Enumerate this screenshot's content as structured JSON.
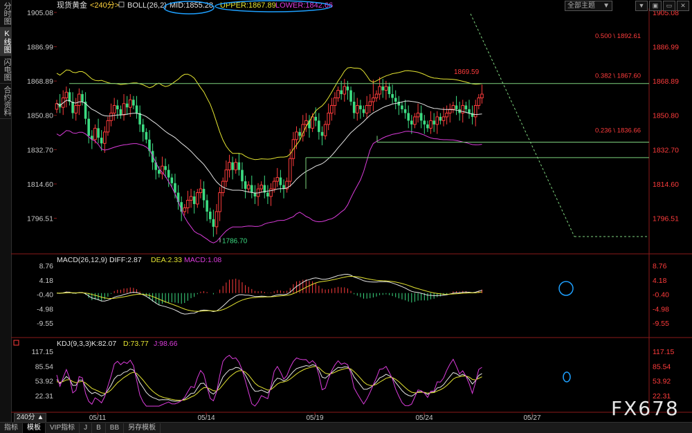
{
  "toolbar_left": [
    {
      "label": "分时图",
      "active": false
    },
    {
      "label": "K线图",
      "active": true
    },
    {
      "label": "闪电图",
      "active": false
    },
    {
      "label": "合约资料",
      "active": false
    }
  ],
  "header": {
    "symbol": "现货黄金",
    "period": "<240分>",
    "boll_label": "BOLL(26,2)",
    "mid": "MID:1855.28",
    "upper": "UPPER:1867.89",
    "lower": "LOWER:1842.66"
  },
  "theme_select": "全部主题",
  "window_controls": [
    "▼",
    "▣",
    "▭",
    "✕"
  ],
  "price_axis": [
    "1905.08",
    "1886.99",
    "1868.89",
    "1850.80",
    "1832.70",
    "1814.60",
    "1796.51"
  ],
  "fib_labels": [
    "0.500 \\ 1892.61",
    "0.382 \\ 1867.60",
    "0.236 \\ 1836.66"
  ],
  "high_label": "1869.59",
  "low_label": "1786.70",
  "macd": {
    "title": "MACD(26,12,9)",
    "diff": "DIFF:2.87",
    "dea": "DEA:2.33",
    "macd": "MACD:1.08",
    "axis": [
      "8.76",
      "4.18",
      "-0.40",
      "-4.98",
      "-9.55"
    ]
  },
  "kdj": {
    "title": "KDJ(9,3,3)",
    "k": "K:82.07",
    "d": "D:73.77",
    "j": "J:98.66",
    "axis": [
      "117.15",
      "85.54",
      "53.92",
      "22.31"
    ]
  },
  "x_labels": [
    "05/11",
    "05/14",
    "05/19",
    "05/24",
    "05/27"
  ],
  "period_label": "240分",
  "bottom_tabs": [
    {
      "label": "指标",
      "active": false
    },
    {
      "label": "模板",
      "active": true
    },
    {
      "label": "VIP指标",
      "active": false
    },
    {
      "label": "J",
      "active": false
    },
    {
      "label": "B",
      "active": false
    },
    {
      "label": "BB",
      "active": false
    },
    {
      "label": "另存模板",
      "active": false
    }
  ],
  "watermark": "FX678",
  "colors": {
    "up": "#ff3c3c",
    "down": "#3cdc82",
    "boll_mid": "#e6e6e6",
    "boll_upper": "#e6e632",
    "boll_lower": "#dc3cdc",
    "fib_line": "#7ed37e",
    "axis_red": "#ff3c3c",
    "highlight_circle": "#1ea0ff"
  }
}
